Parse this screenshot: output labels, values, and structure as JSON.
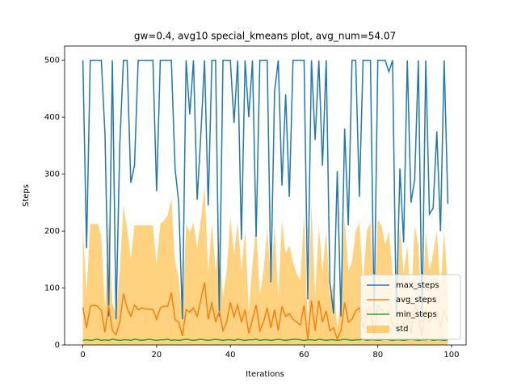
{
  "chart_data": {
    "type": "line",
    "title": "gw=0.4, avg10 special_kmeans plot, avg_num=54.07",
    "x_label": "Iterations",
    "y_label": "Steps",
    "x": [
      0,
      1,
      2,
      3,
      4,
      5,
      6,
      7,
      8,
      9,
      10,
      11,
      12,
      13,
      14,
      15,
      16,
      17,
      18,
      19,
      20,
      21,
      22,
      23,
      24,
      25,
      26,
      27,
      28,
      29,
      30,
      31,
      32,
      33,
      34,
      35,
      36,
      37,
      38,
      39,
      40,
      41,
      42,
      43,
      44,
      45,
      46,
      47,
      48,
      49,
      50,
      51,
      52,
      53,
      54,
      55,
      56,
      57,
      58,
      59,
      60,
      61,
      62,
      63,
      64,
      65,
      66,
      67,
      68,
      69,
      70,
      71,
      72,
      73,
      74,
      75,
      76,
      77,
      78,
      79,
      80,
      81,
      82,
      83,
      84,
      85,
      86,
      87,
      88,
      89,
      90,
      91,
      92,
      93,
      94,
      95,
      96,
      97,
      98,
      99
    ],
    "series": [
      {
        "name": "max_steps",
        "color": "#1f77b4",
        "values": [
          500,
          170,
          500,
          500,
          500,
          500,
          370,
          50,
          500,
          45,
          350,
          500,
          500,
          285,
          315,
          500,
          500,
          500,
          500,
          500,
          270,
          500,
          500,
          500,
          500,
          310,
          250,
          45,
          500,
          405,
          500,
          255,
          370,
          500,
          245,
          500,
          500,
          50,
          500,
          500,
          500,
          390,
          500,
          185,
          500,
          400,
          500,
          190,
          500,
          500,
          500,
          110,
          445,
          500,
          280,
          440,
          260,
          500,
          500,
          500,
          500,
          80,
          500,
          360,
          500,
          315,
          500,
          110,
          55,
          305,
          50,
          380,
          210,
          500,
          500,
          260,
          500,
          500,
          500,
          50,
          500,
          500,
          500,
          480,
          500,
          50,
          310,
          180,
          500,
          250,
          290,
          500,
          40,
          500,
          230,
          240,
          375,
          200,
          500,
          248
        ]
      },
      {
        "name": "avg_steps",
        "color": "#ff7f0e",
        "values": [
          66,
          30,
          68,
          70,
          68,
          60,
          22,
          70,
          25,
          18,
          40,
          90,
          65,
          50,
          70,
          62,
          65,
          63,
          63,
          62,
          45,
          65,
          68,
          68,
          92,
          45,
          40,
          16,
          62,
          58,
          65,
          50,
          80,
          110,
          45,
          75,
          40,
          60,
          25,
          40,
          75,
          50,
          70,
          40,
          62,
          20,
          45,
          70,
          25,
          40,
          65,
          30,
          62,
          25,
          68,
          50,
          55,
          45,
          40,
          35,
          70,
          10,
          78,
          25,
          78,
          40,
          60,
          25,
          30,
          10,
          25,
          75,
          40,
          45,
          60,
          65,
          30,
          60,
          65,
          15,
          70,
          62,
          55,
          60,
          35,
          30,
          60,
          35,
          55,
          20,
          70,
          55,
          15,
          62,
          40,
          50,
          60,
          30,
          60,
          40
        ]
      },
      {
        "name": "min_steps",
        "color": "#2ca02c",
        "values": [
          8,
          9,
          8,
          9,
          10,
          8,
          9,
          8,
          10,
          9,
          8,
          9,
          9,
          8,
          10,
          9,
          8,
          9,
          10,
          9,
          8,
          9,
          9,
          10,
          8,
          9,
          8,
          9,
          10,
          9,
          8,
          9,
          10,
          9,
          8,
          9,
          10,
          9,
          8,
          9,
          9,
          8,
          10,
          9,
          8,
          9,
          9,
          10,
          8,
          9,
          9,
          8,
          9,
          10,
          9,
          8,
          9,
          10,
          10,
          9,
          8,
          9,
          9,
          8,
          10,
          9,
          8,
          9,
          9,
          8,
          9,
          10,
          9,
          8,
          9,
          9,
          10,
          8,
          9,
          9,
          8,
          9,
          10,
          9,
          8,
          9,
          9,
          8,
          9,
          10,
          9,
          8,
          9,
          9,
          10,
          8,
          9,
          9,
          8,
          9
        ]
      },
      {
        "name": "std",
        "color": "#ffa500",
        "values": [
          140,
          60,
          145,
          142,
          145,
          130,
          40,
          150,
          50,
          35,
          90,
          155,
          140,
          100,
          140,
          148,
          145,
          147,
          147,
          148,
          95,
          148,
          150,
          160,
          165,
          100,
          80,
          30,
          150,
          140,
          150,
          120,
          140,
          170,
          80,
          140,
          90,
          130,
          60,
          90,
          150,
          110,
          145,
          90,
          140,
          40,
          95,
          145,
          60,
          90,
          140,
          80,
          148,
          60,
          150,
          110,
          120,
          100,
          85,
          80,
          160,
          20,
          170,
          60,
          130,
          90,
          140,
          60,
          80,
          20,
          60,
          150,
          90,
          100,
          140,
          150,
          80,
          140,
          150,
          40,
          150,
          148,
          120,
          140,
          90,
          80,
          150,
          90,
          120,
          50,
          140,
          120,
          35,
          140,
          90,
          110,
          140,
          70,
          140,
          60
        ]
      }
    ],
    "xlim": [
      -4.95,
      103.95
    ],
    "ylim": [
      0,
      525
    ],
    "xticks": [
      0,
      20,
      40,
      60,
      80,
      100
    ],
    "yticks": [
      0,
      100,
      200,
      300,
      400,
      500
    ],
    "legend": "lower right"
  }
}
